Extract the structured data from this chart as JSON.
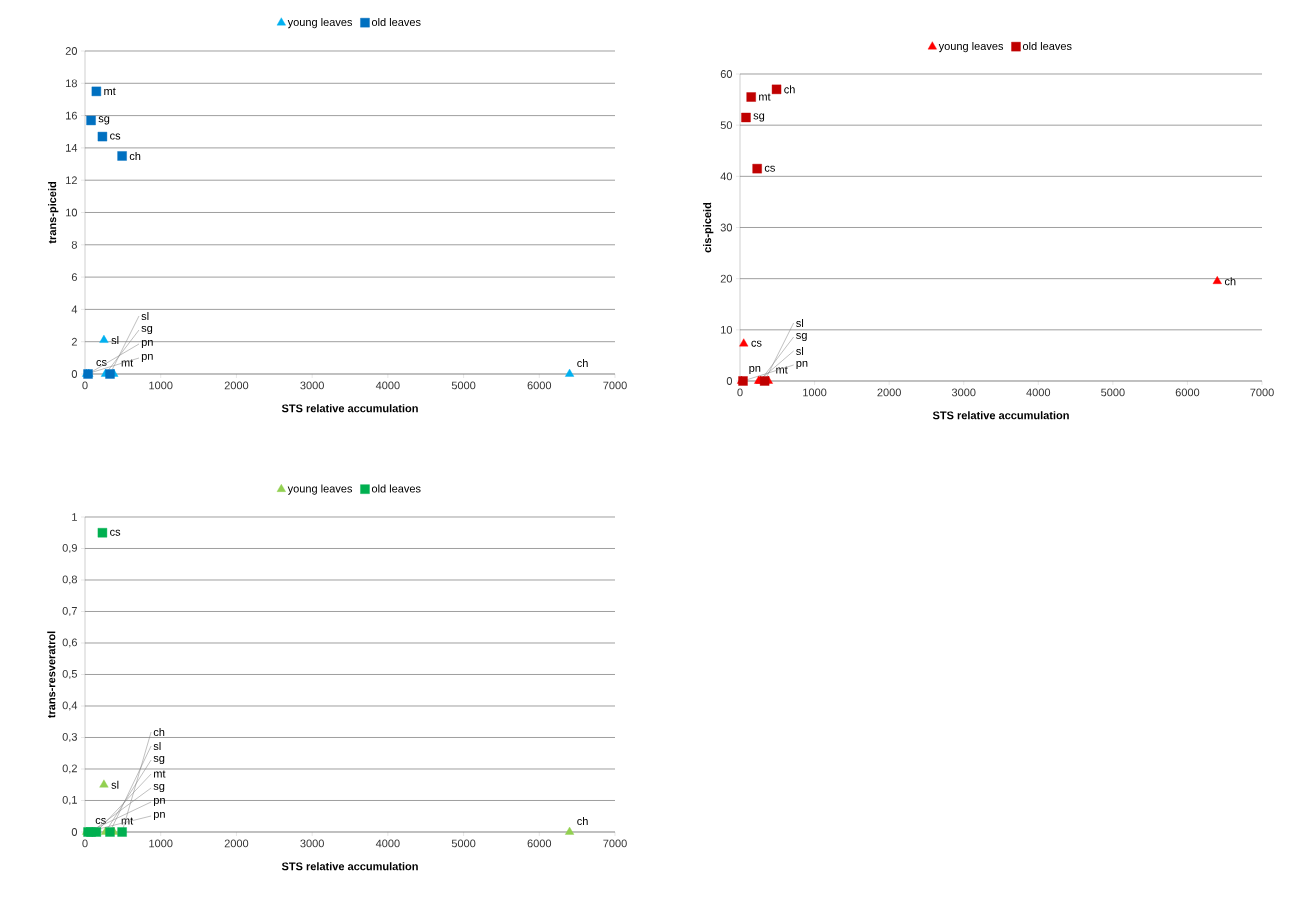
{
  "chart_data": [
    {
      "type": "scatter",
      "xlabel": "STS relative accumulation",
      "ylabel": "trans-piceid",
      "xlim": [
        0,
        7000
      ],
      "xticks": [
        0,
        1000,
        2000,
        3000,
        4000,
        5000,
        6000,
        7000
      ],
      "ylim": [
        0,
        20
      ],
      "yticks": [
        0,
        2,
        4,
        6,
        8,
        10,
        12,
        14,
        16,
        18,
        20
      ],
      "grid": "y",
      "legend": "top",
      "series": [
        {
          "name": "young leaves",
          "color": "#00b0f0",
          "marker": "triangle",
          "x": [
            6400,
            50,
            380,
            20,
            270,
            250
          ],
          "values": [
            0,
            0,
            0,
            0,
            0,
            2.1
          ]
        },
        {
          "name": "old leaves",
          "color": "#0070c0",
          "marker": "square",
          "x": [
            490,
            230,
            150,
            40,
            80,
            330
          ],
          "values": [
            13.5,
            14.7,
            17.5,
            0,
            15.7,
            0
          ]
        }
      ],
      "annotations": [
        {
          "text": "ch",
          "x": 6400,
          "y": 0
        },
        {
          "text": "cs",
          "x": 50,
          "y": 0
        },
        {
          "text": "mt",
          "x": 380,
          "y": 0
        },
        {
          "text": "pn",
          "x": 20,
          "y": 0
        },
        {
          "text": "sg",
          "x": 270,
          "y": 0
        },
        {
          "text": "sl",
          "x": 250,
          "y": 2.1
        },
        {
          "text": "ch",
          "x": 490,
          "y": 13.5
        },
        {
          "text": "cs",
          "x": 230,
          "y": 14.7
        },
        {
          "text": "mt",
          "x": 150,
          "y": 17.5
        },
        {
          "text": "pn",
          "x": 40,
          "y": 0
        },
        {
          "text": "sg",
          "x": 80,
          "y": 15.7
        },
        {
          "text": "sl",
          "x": 330,
          "y": 0
        }
      ]
    },
    {
      "type": "scatter",
      "xlabel": "STS relative accumulation",
      "ylabel": "cis-piceid",
      "xlim": [
        0,
        7000
      ],
      "xticks": [
        0,
        1000,
        2000,
        3000,
        4000,
        5000,
        6000,
        7000
      ],
      "ylim": [
        0,
        60
      ],
      "yticks": [
        0,
        10,
        20,
        30,
        40,
        50,
        60
      ],
      "grid": "y",
      "legend": "top",
      "series": [
        {
          "name": "young leaves",
          "color": "#ff0000",
          "marker": "triangle",
          "x": [
            6400,
            50,
            380,
            20,
            270,
            250
          ],
          "values": [
            19.5,
            7.3,
            0,
            0,
            0,
            0
          ]
        },
        {
          "name": "old leaves",
          "color": "#c00000",
          "marker": "square",
          "x": [
            490,
            230,
            150,
            40,
            80,
            330
          ],
          "values": [
            57,
            41.5,
            55.5,
            0,
            51.5,
            0
          ]
        }
      ],
      "annotations": [
        {
          "text": "ch",
          "x": 6400,
          "y": 19.5
        },
        {
          "text": "cs",
          "x": 50,
          "y": 7.3
        },
        {
          "text": "mt",
          "x": 380,
          "y": 0
        },
        {
          "text": "pn",
          "x": 20,
          "y": 0
        },
        {
          "text": "sg",
          "x": 270,
          "y": 0
        },
        {
          "text": "sl",
          "x": 250,
          "y": 0
        },
        {
          "text": "ch",
          "x": 490,
          "y": 57
        },
        {
          "text": "cs",
          "x": 230,
          "y": 41.5
        },
        {
          "text": "mt",
          "x": 150,
          "y": 55.5
        },
        {
          "text": "pn",
          "x": 40,
          "y": 0
        },
        {
          "text": "sg",
          "x": 80,
          "y": 51.5
        },
        {
          "text": "sl",
          "x": 330,
          "y": 0
        }
      ]
    },
    {
      "type": "scatter",
      "xlabel": "STS relative accumulation",
      "ylabel": "trans-resveratrol",
      "xlim": [
        0,
        7000
      ],
      "xticks": [
        0,
        1000,
        2000,
        3000,
        4000,
        5000,
        6000,
        7000
      ],
      "ylim": [
        0,
        1
      ],
      "yticks": [
        0,
        {
          "value": 0.1,
          "label": "0,1"
        },
        {
          "value": 0.2,
          "label": "0,2"
        },
        {
          "value": 0.3,
          "label": "0,3"
        },
        {
          "value": 0.4,
          "label": "0,4"
        },
        {
          "value": 0.5,
          "label": "0,5"
        },
        {
          "value": 0.6,
          "label": "0,6"
        },
        {
          "value": 0.7,
          "label": "0,7"
        },
        {
          "value": 0.8,
          "label": "0,8"
        },
        {
          "value": 0.9,
          "label": "0,9"
        },
        1
      ],
      "grid": "y",
      "legend": "top",
      "series": [
        {
          "name": "young leaves",
          "color": "#92d050",
          "marker": "triangle",
          "x": [
            6400,
            380,
            20,
            270,
            250
          ],
          "values": [
            0,
            0,
            0,
            0,
            0.15
          ]
        },
        {
          "name": "old leaves",
          "color": "#00b050",
          "marker": "square",
          "x": [
            490,
            230,
            150,
            40,
            80,
            330
          ],
          "values": [
            0,
            0.95,
            0,
            0,
            0,
            0
          ]
        }
      ],
      "annotations": [
        {
          "text": "ch",
          "x": 6400,
          "y": 0
        },
        {
          "text": "cs",
          "x": 40,
          "y": 0
        },
        {
          "text": "mt",
          "x": 380,
          "y": 0
        },
        {
          "text": "pn",
          "x": 20,
          "y": 0
        },
        {
          "text": "sg",
          "x": 270,
          "y": 0
        },
        {
          "text": "sl",
          "x": 250,
          "y": 0.15
        },
        {
          "text": "ch",
          "x": 490,
          "y": 0
        },
        {
          "text": "cs",
          "x": 230,
          "y": 0.95
        },
        {
          "text": "mt",
          "x": 150,
          "y": 0
        },
        {
          "text": "pn",
          "x": 40,
          "y": 0
        },
        {
          "text": "sg",
          "x": 80,
          "y": 0
        },
        {
          "text": "sl",
          "x": 330,
          "y": 0
        }
      ]
    }
  ]
}
